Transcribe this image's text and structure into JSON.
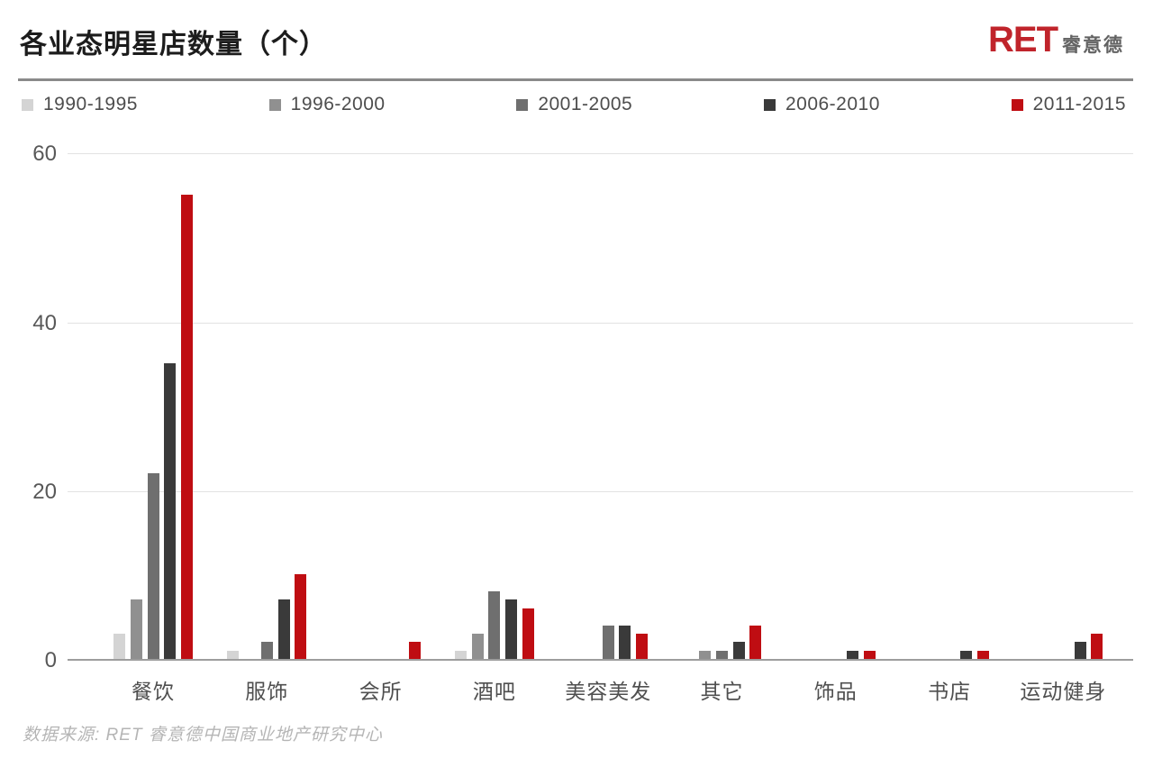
{
  "header": {
    "title": "各业态明星店数量（个）",
    "logo": {
      "text": "RET",
      "suffix": "睿意德",
      "brand_color": "#c0242b"
    }
  },
  "chart_data": {
    "type": "bar",
    "title": "各业态明星店数量（个）",
    "categories": [
      "餐饮",
      "服饰",
      "会所",
      "酒吧",
      "美容美发",
      "其它",
      "饰品",
      "书店",
      "运动健身"
    ],
    "series": [
      {
        "name": "1990-1995",
        "color": "#d4d4d4",
        "values": [
          3,
          1,
          0,
          1,
          0,
          0,
          0,
          0,
          0
        ]
      },
      {
        "name": "1996-2000",
        "color": "#909090",
        "values": [
          7,
          0,
          0,
          3,
          0,
          1,
          0,
          0,
          0
        ]
      },
      {
        "name": "2001-2005",
        "color": "#6f6f6f",
        "values": [
          22,
          2,
          0,
          8,
          4,
          1,
          0,
          0,
          0
        ]
      },
      {
        "name": "2006-2010",
        "color": "#3a3a3a",
        "values": [
          35,
          7,
          0,
          7,
          4,
          2,
          1,
          1,
          2
        ]
      },
      {
        "name": "2011-2015",
        "color": "#bf0d12",
        "values": [
          55,
          10,
          2,
          6,
          3,
          4,
          1,
          1,
          3
        ]
      }
    ],
    "xlabel": "",
    "ylabel": "",
    "yticks": [
      0,
      20,
      40,
      60
    ],
    "ylim": [
      0,
      62.5
    ],
    "grid": true,
    "legend_position": "top"
  },
  "footer": {
    "source": "数据来源: RET 睿意德中国商业地产研究中心"
  }
}
